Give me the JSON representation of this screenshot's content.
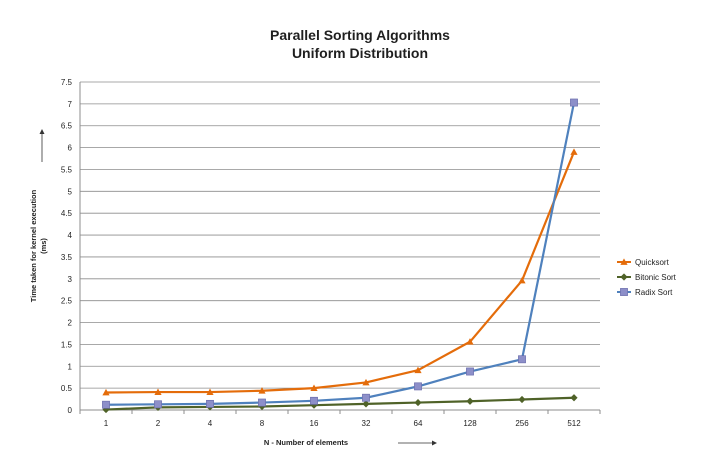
{
  "chart_data": {
    "type": "line",
    "title": "Parallel Sorting Algorithms",
    "subtitle": "Uniform Distribution",
    "xlabel": "N - Number of elements",
    "ylabel": "Time taken for kernel execution",
    "ylabel_unit": "(ms)",
    "categories": [
      "1",
      "2",
      "4",
      "8",
      "16",
      "32",
      "64",
      "128",
      "256",
      "512"
    ],
    "ylim": [
      0,
      7.5
    ],
    "ytick_step": 0.5,
    "yticks": [
      "0",
      "0.5",
      "1",
      "1.5",
      "2",
      "2.5",
      "3",
      "3.5",
      "4",
      "4.5",
      "5",
      "5.5",
      "6",
      "6.5",
      "7",
      "7.5"
    ],
    "grid": true,
    "legend_position": "right",
    "series": [
      {
        "name": "Quicksort",
        "color": "#E46C0A",
        "marker": "triangle",
        "values": [
          0.4,
          0.41,
          0.41,
          0.44,
          0.5,
          0.63,
          0.91,
          1.56,
          2.96,
          5.9
        ]
      },
      {
        "name": "Bitonic Sort",
        "color": "#4F6228",
        "marker": "diamond",
        "values": [
          0.01,
          0.06,
          0.07,
          0.08,
          0.11,
          0.14,
          0.17,
          0.2,
          0.24,
          0.28
        ]
      },
      {
        "name": "Radix Sort",
        "color": "#4F81BD",
        "marker": "square",
        "values": [
          0.12,
          0.13,
          0.14,
          0.17,
          0.21,
          0.28,
          0.54,
          0.88,
          1.16,
          7.03
        ]
      }
    ]
  }
}
